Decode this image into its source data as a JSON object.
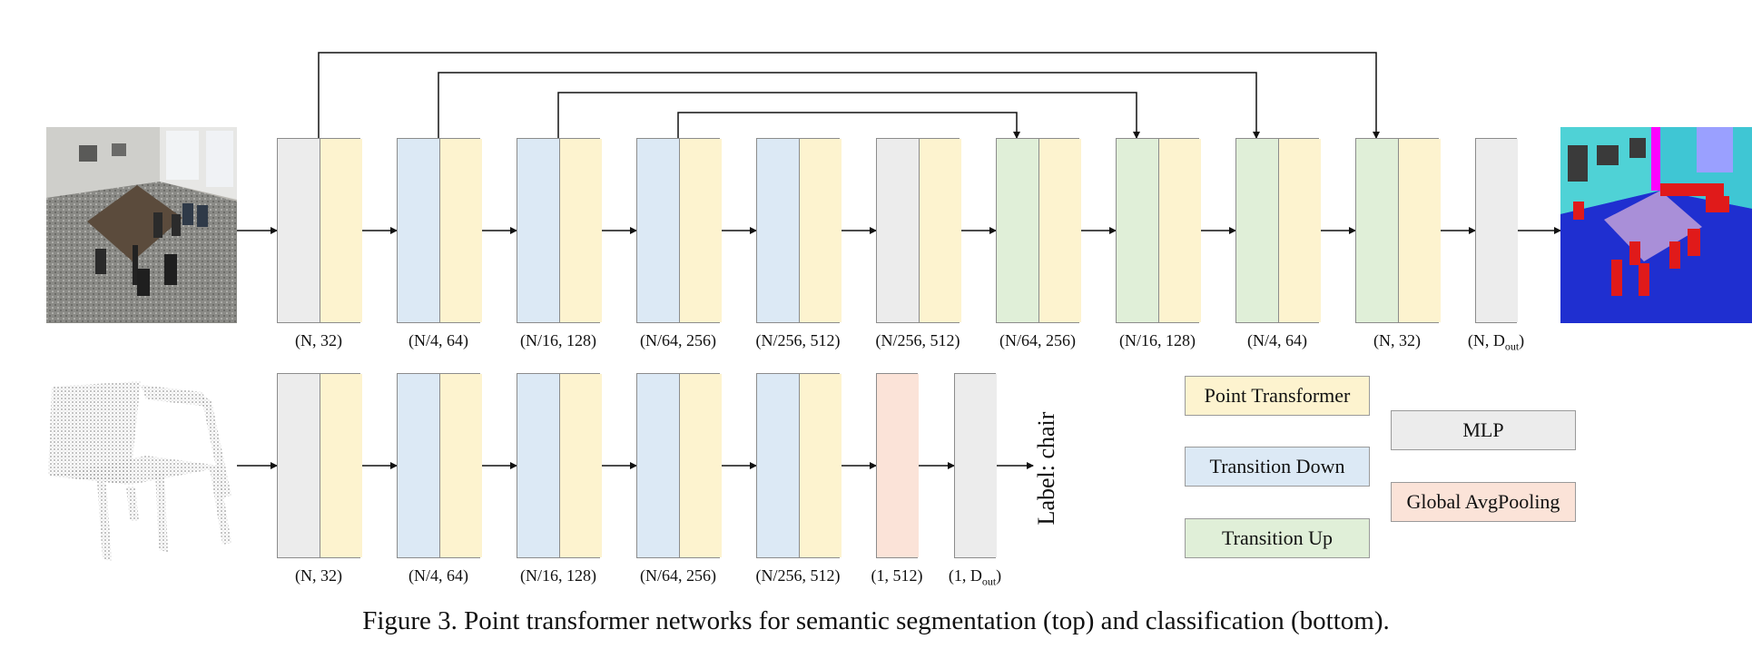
{
  "colors": {
    "mlp": "#ececec",
    "point_transformer": "#fdf3cf",
    "transition_down": "#dce9f5",
    "transition_up": "#e0efd8",
    "global_avgpooling": "#fbe3d8",
    "border": "#8c8c8c",
    "arrow": "#111111"
  },
  "segmentation": {
    "input_image": "indoor-room-point-cloud",
    "output_image": "segmented-room-point-cloud",
    "stages": [
      {
        "type": [
          "mlp",
          "point_transformer"
        ],
        "label": "(N, 32)"
      },
      {
        "type": [
          "transition_down",
          "point_transformer"
        ],
        "label": "(N/4, 64)"
      },
      {
        "type": [
          "transition_down",
          "point_transformer"
        ],
        "label": "(N/16, 128)"
      },
      {
        "type": [
          "transition_down",
          "point_transformer"
        ],
        "label": "(N/64, 256)"
      },
      {
        "type": [
          "transition_down",
          "point_transformer"
        ],
        "label": "(N/256, 512)"
      },
      {
        "type": [
          "mlp",
          "point_transformer"
        ],
        "label": "(N/256, 512)"
      },
      {
        "type": [
          "transition_up",
          "point_transformer"
        ],
        "label": "(N/64, 256)"
      },
      {
        "type": [
          "transition_up",
          "point_transformer"
        ],
        "label": "(N/16, 128)"
      },
      {
        "type": [
          "transition_up",
          "point_transformer"
        ],
        "label": "(N/4, 64)"
      },
      {
        "type": [
          "transition_up",
          "point_transformer"
        ],
        "label": "(N, 32)"
      },
      {
        "type": [
          "mlp"
        ],
        "label": "(N, D",
        "sub": "out",
        "suffix": ")"
      }
    ]
  },
  "classification": {
    "input_image": "chair-point-cloud",
    "label_text": "Label: chair",
    "stages": [
      {
        "type": [
          "mlp",
          "point_transformer"
        ],
        "label": "(N, 32)"
      },
      {
        "type": [
          "transition_down",
          "point_transformer"
        ],
        "label": "(N/4, 64)"
      },
      {
        "type": [
          "transition_down",
          "point_transformer"
        ],
        "label": "(N/16, 128)"
      },
      {
        "type": [
          "transition_down",
          "point_transformer"
        ],
        "label": "(N/64, 256)"
      },
      {
        "type": [
          "transition_down",
          "point_transformer"
        ],
        "label": "(N/256, 512)"
      },
      {
        "type": [
          "global_avgpooling"
        ],
        "label": "(1, 512)"
      },
      {
        "type": [
          "mlp"
        ],
        "label": "(1, D",
        "sub": "out",
        "suffix": ")"
      }
    ]
  },
  "legend": {
    "point_transformer": "Point Transformer",
    "transition_down": "Transition Down",
    "transition_up": "Transition Up",
    "mlp": "MLP",
    "global_avgpooling": "Global AvgPooling"
  },
  "caption": "Figure 3. Point transformer networks for semantic segmentation (top) and classification (bottom)."
}
